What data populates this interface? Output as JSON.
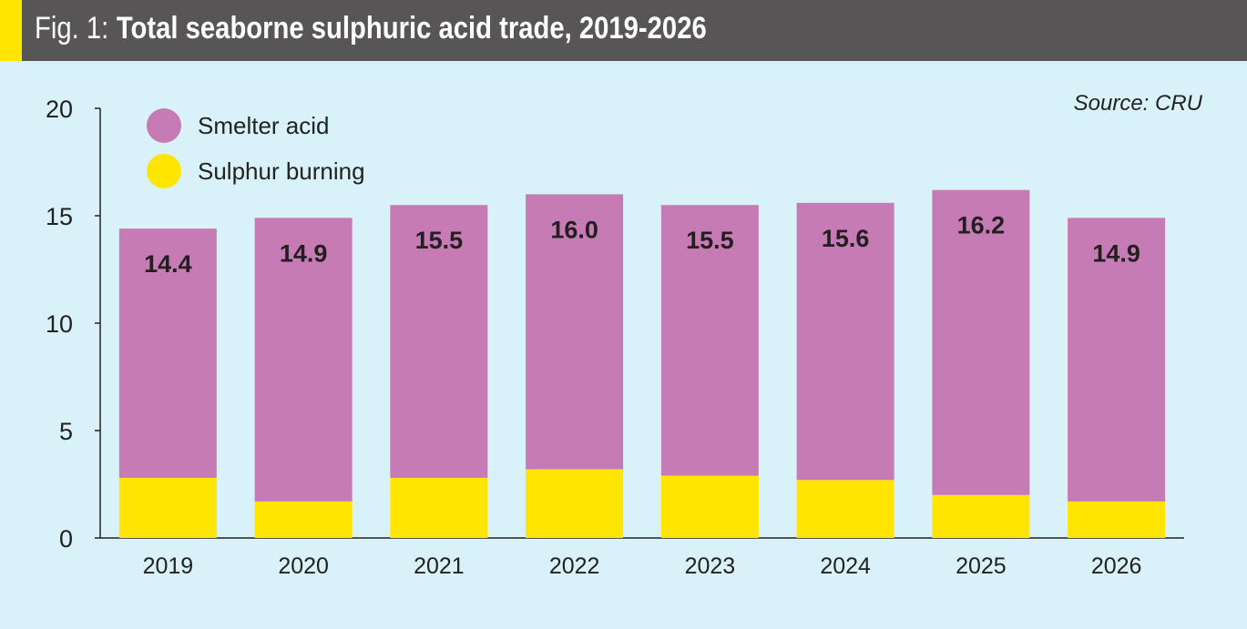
{
  "header": {
    "prefix": "Fig. 1:",
    "title": "Total seaborne sulphuric acid trade, 2019-2026"
  },
  "source": "Source: CRU",
  "chart_data": {
    "type": "bar",
    "stacked": true,
    "title": "Total seaborne sulphuric acid trade, 2019-2026",
    "xlabel": "",
    "ylabel": "",
    "ylim": [
      0,
      20
    ],
    "yticks": [
      0,
      5,
      10,
      15,
      20
    ],
    "categories": [
      "2019",
      "2020",
      "2021",
      "2022",
      "2023",
      "2024",
      "2025",
      "2026"
    ],
    "series": [
      {
        "name": "Sulphur burning",
        "color": "#ffe500",
        "values": [
          2.8,
          1.7,
          2.8,
          3.2,
          2.9,
          2.7,
          2.0,
          1.7
        ]
      },
      {
        "name": "Smelter acid",
        "color": "#c67bb5",
        "values": [
          11.6,
          13.2,
          12.7,
          12.8,
          12.6,
          12.9,
          14.2,
          13.2
        ]
      }
    ],
    "totals": [
      "14.4",
      "14.9",
      "15.5",
      "16.0",
      "15.5",
      "15.6",
      "16.2",
      "14.9"
    ],
    "legend": {
      "position": "top-left",
      "entries": [
        "Smelter acid",
        "Sulphur burning"
      ]
    },
    "grid": false
  }
}
